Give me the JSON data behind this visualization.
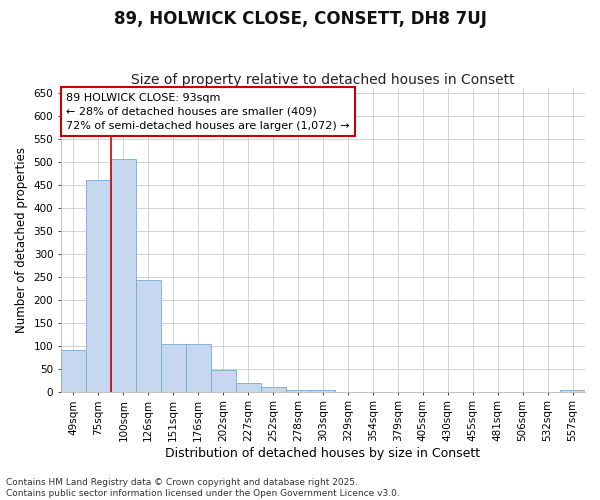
{
  "title": "89, HOLWICK CLOSE, CONSETT, DH8 7UJ",
  "subtitle": "Size of property relative to detached houses in Consett",
  "xlabel": "Distribution of detached houses by size in Consett",
  "ylabel": "Number of detached properties",
  "categories": [
    "49sqm",
    "75sqm",
    "100sqm",
    "126sqm",
    "151sqm",
    "176sqm",
    "202sqm",
    "227sqm",
    "252sqm",
    "278sqm",
    "303sqm",
    "329sqm",
    "354sqm",
    "379sqm",
    "405sqm",
    "430sqm",
    "455sqm",
    "481sqm",
    "506sqm",
    "532sqm",
    "557sqm"
  ],
  "values": [
    90,
    460,
    507,
    242,
    104,
    104,
    47,
    18,
    10,
    3,
    3,
    0,
    0,
    0,
    0,
    0,
    0,
    0,
    0,
    0,
    3
  ],
  "bar_color": "#c5d8f0",
  "bar_edge_color": "#7aaad0",
  "vline_x": 1.5,
  "vline_color": "#cc0000",
  "annotation_text": "89 HOLWICK CLOSE: 93sqm\n← 28% of detached houses are smaller (409)\n72% of semi-detached houses are larger (1,072) →",
  "annotation_box_color": "#ffffff",
  "annotation_box_edge": "#cc0000",
  "ylim": [
    0,
    660
  ],
  "yticks": [
    0,
    50,
    100,
    150,
    200,
    250,
    300,
    350,
    400,
    450,
    500,
    550,
    600,
    650
  ],
  "grid_color": "#cccccc",
  "bg_color": "#ffffff",
  "footnote": "Contains HM Land Registry data © Crown copyright and database right 2025.\nContains public sector information licensed under the Open Government Licence v3.0.",
  "title_fontsize": 12,
  "subtitle_fontsize": 10,
  "xlabel_fontsize": 9,
  "ylabel_fontsize": 8.5,
  "tick_fontsize": 7.5,
  "annot_fontsize": 8,
  "footnote_fontsize": 6.5
}
